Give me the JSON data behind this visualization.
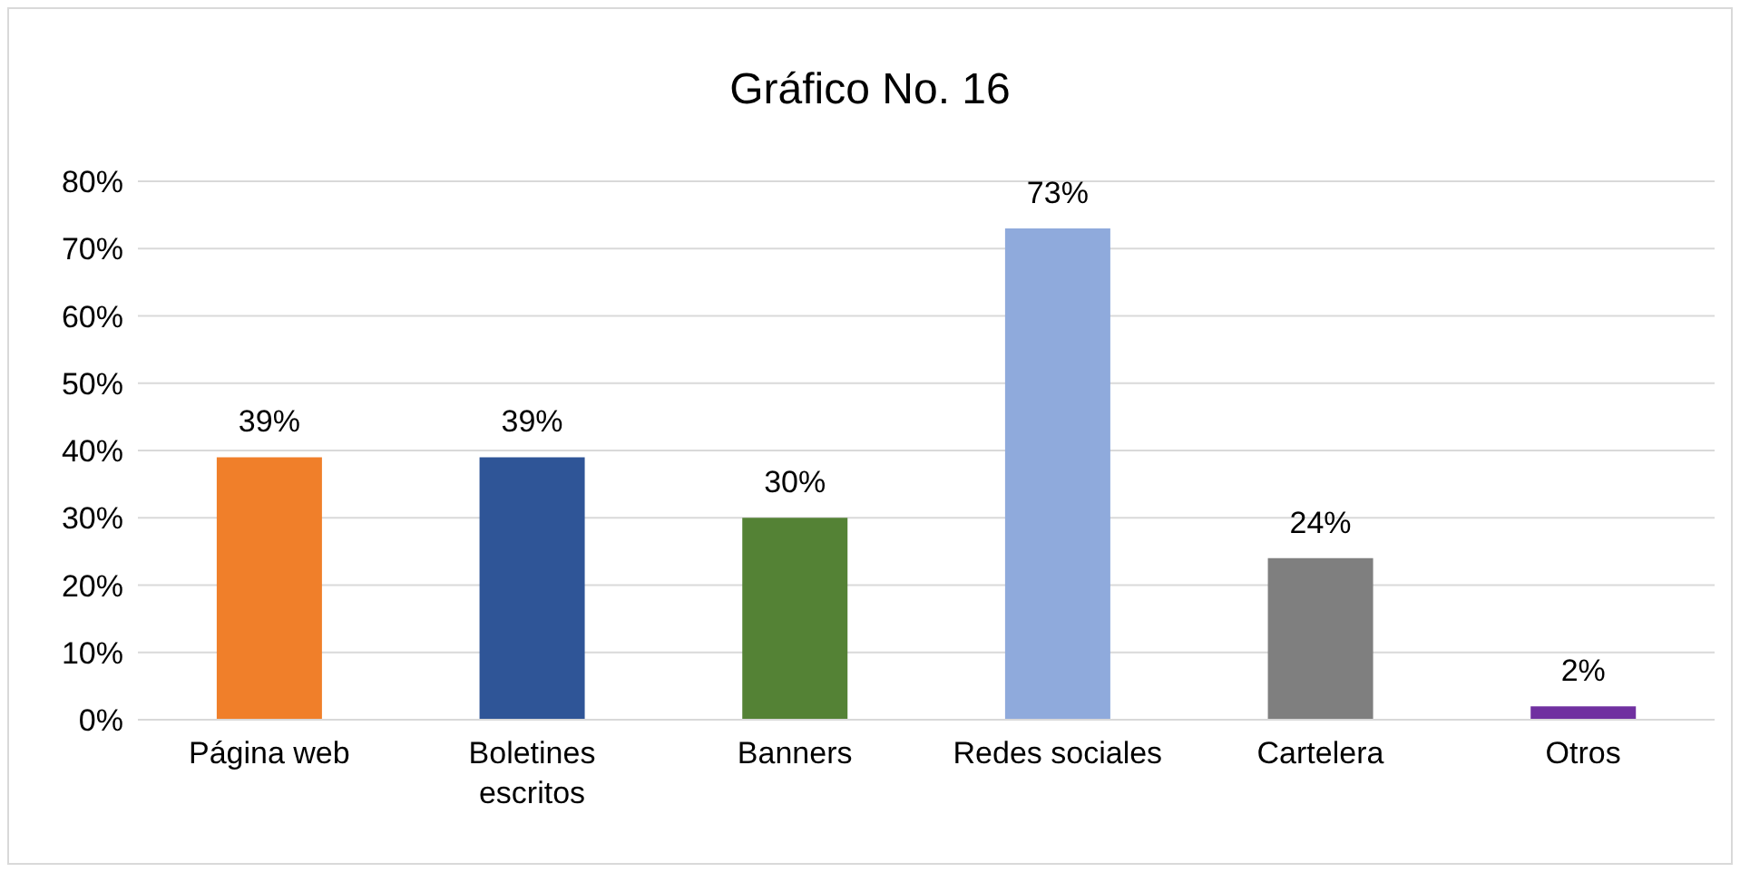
{
  "chart_data": {
    "type": "bar",
    "title": "Gráfico No. 16",
    "categories": [
      "Página web",
      "Boletines escritos",
      "Banners",
      "Redes sociales",
      "Cartelera",
      "Otros"
    ],
    "values": [
      39,
      39,
      30,
      73,
      24,
      2
    ],
    "colors": [
      "#f07f2a",
      "#2f5597",
      "#548235",
      "#8faadc",
      "#7f7f7f",
      "#7030a0"
    ],
    "value_labels": [
      "39%",
      "39%",
      "30%",
      "73%",
      "24%",
      "2%"
    ],
    "ylim": [
      0,
      80
    ],
    "yticks": [
      {
        "value": 0,
        "label": "0%"
      },
      {
        "value": 10,
        "label": "10%"
      },
      {
        "value": 20,
        "label": "20%"
      },
      {
        "value": 30,
        "label": "30%"
      },
      {
        "value": 40,
        "label": "40%"
      },
      {
        "value": 50,
        "label": "50%"
      },
      {
        "value": 60,
        "label": "60%"
      },
      {
        "value": 70,
        "label": "70%"
      },
      {
        "value": 80,
        "label": "80%"
      }
    ],
    "grid": "y"
  }
}
